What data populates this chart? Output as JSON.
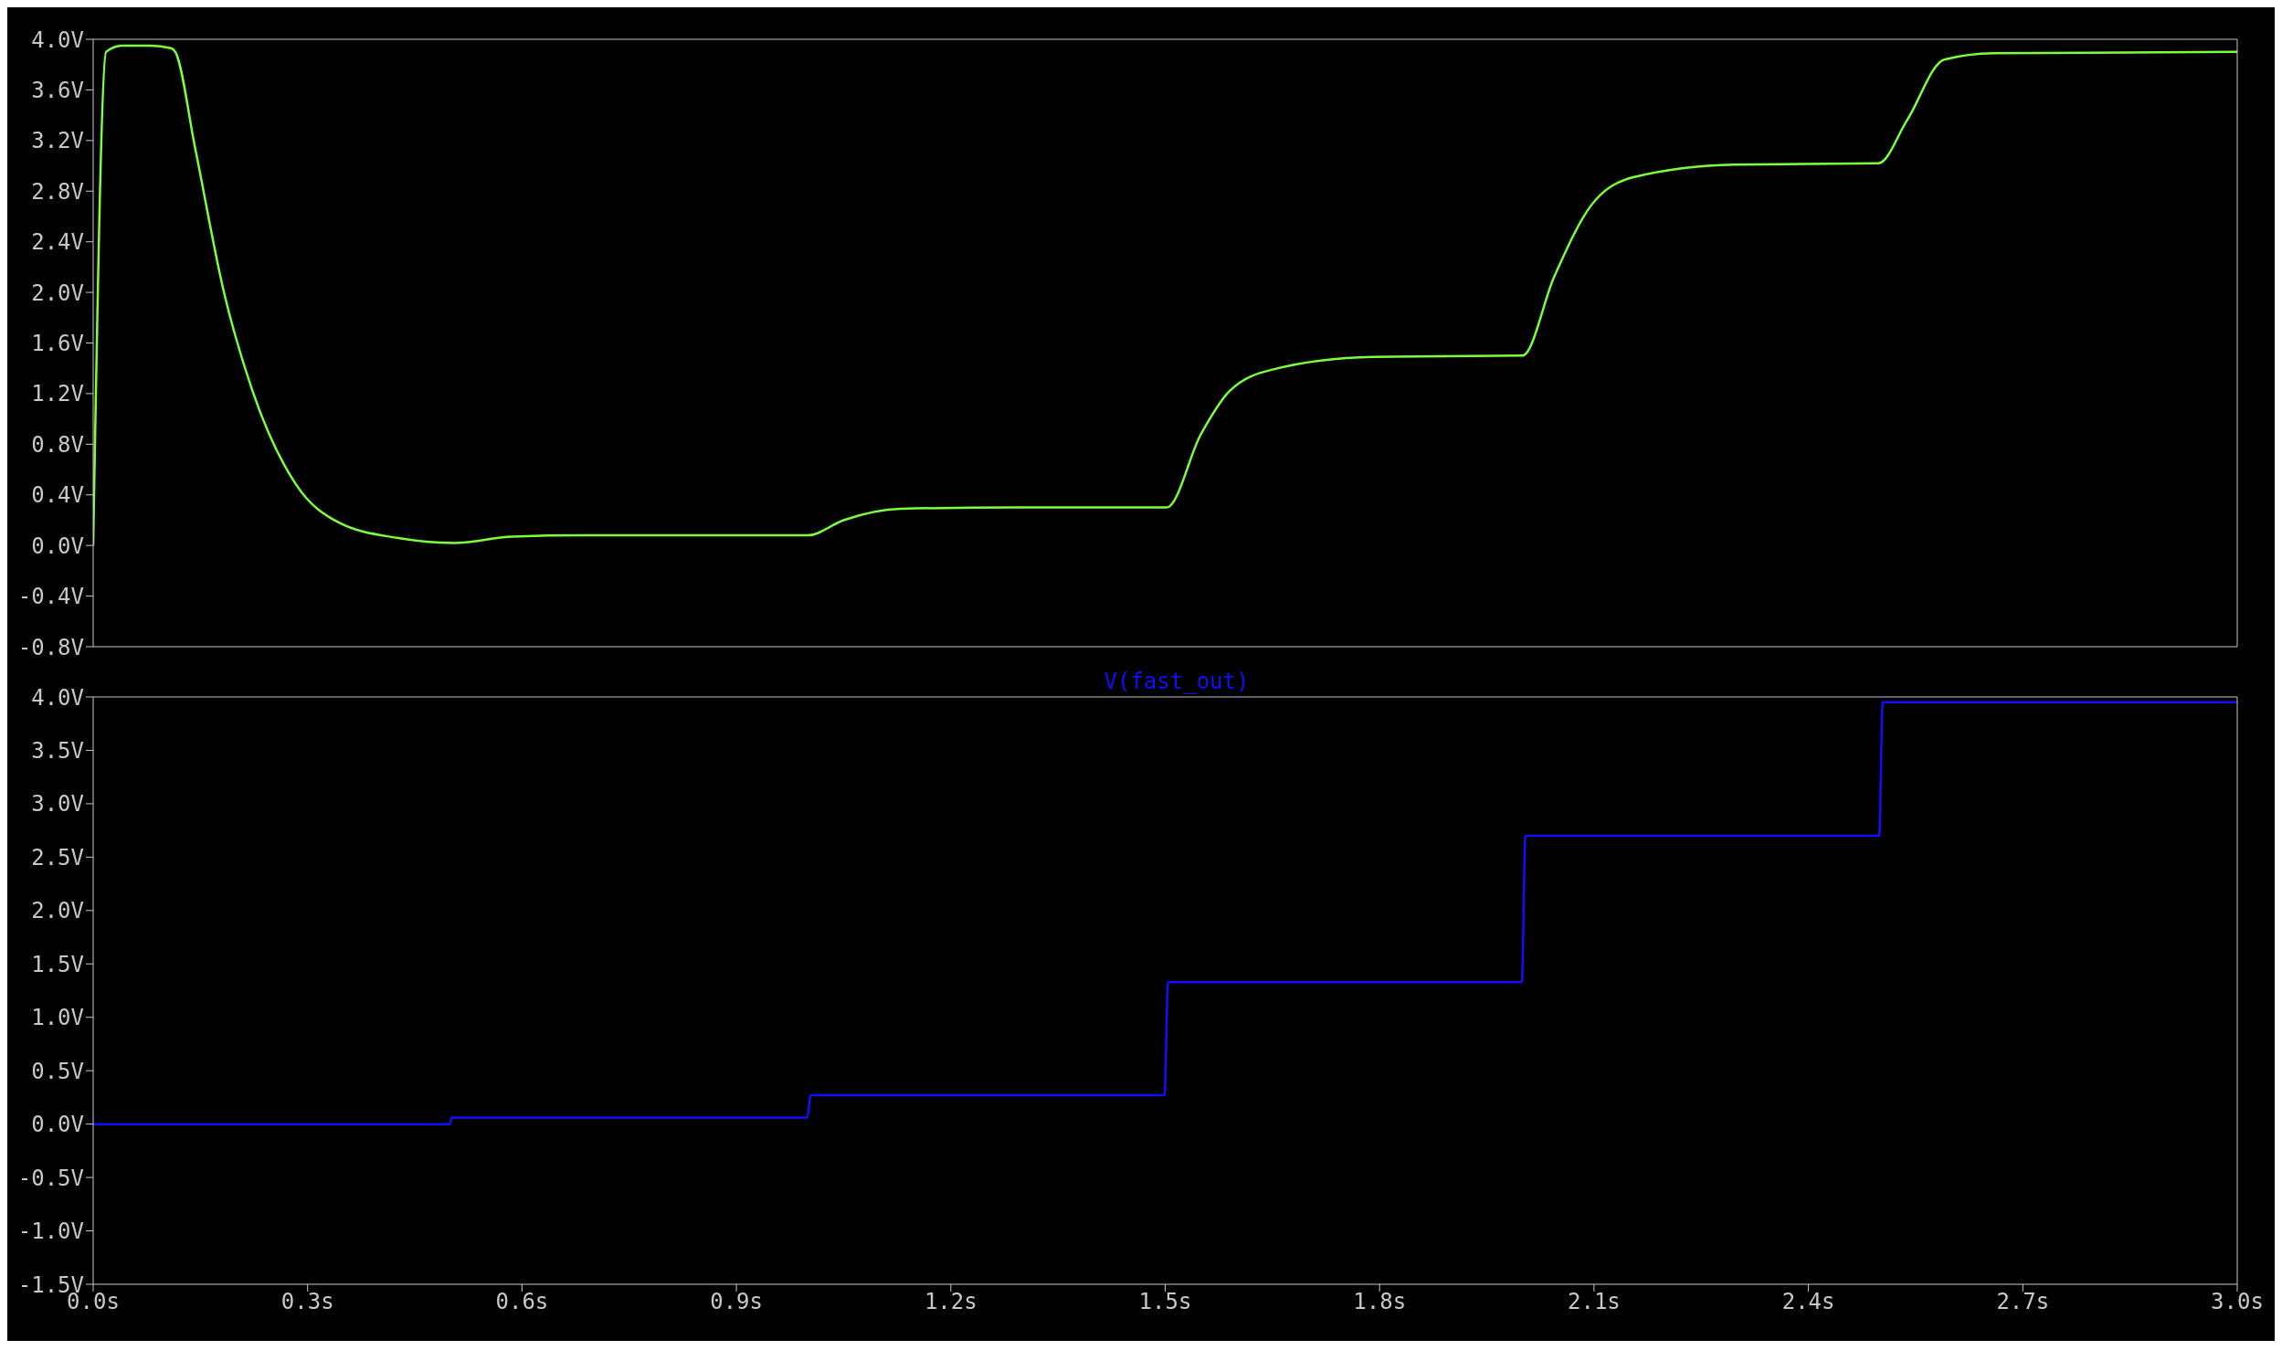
{
  "chart_data": [
    {
      "type": "line",
      "tick_labels": "y",
      "xlim": [
        0,
        3
      ],
      "ylim": [
        -0.8,
        4.0
      ],
      "yticks": [
        {
          "value": -0.8,
          "label": "-0.8V"
        },
        {
          "value": -0.4,
          "label": "-0.4V"
        },
        {
          "value": 0,
          "label": "0.0V"
        },
        {
          "value": 0.4,
          "label": "0.4V"
        },
        {
          "value": 0.8,
          "label": "0.8V"
        },
        {
          "value": 1.2,
          "label": "1.2V"
        },
        {
          "value": 1.6,
          "label": "1.6V"
        },
        {
          "value": 2.0,
          "label": "2.0V"
        },
        {
          "value": 2.4,
          "label": "2.4V"
        },
        {
          "value": 2.8,
          "label": "2.8V"
        },
        {
          "value": 3.2,
          "label": "3.2V"
        },
        {
          "value": 3.6,
          "label": "3.6V"
        },
        {
          "value": 4.0,
          "label": "4.0V"
        }
      ],
      "series": [
        {
          "color": "#7cff3c",
          "x": [
            0,
            0.018,
            0.04,
            0.08,
            0.109,
            0.115,
            0.143,
            0.183,
            0.223,
            0.284,
            0.344,
            0.425,
            0.505,
            0.586,
            0.687,
            1.0,
            1.05,
            1.13,
            1.29,
            1.502,
            1.55,
            1.59,
            1.65,
            1.79,
            2.0,
            2.044,
            2.095,
            2.155,
            2.296,
            2.498,
            2.538,
            2.59,
            2.66,
            3.0
          ],
          "values": [
            0,
            3.9,
            3.95,
            3.95,
            3.93,
            3.9,
            3.13,
            2.0,
            1.22,
            0.48,
            0.18,
            0.06,
            0.02,
            0.07,
            0.08,
            0.08,
            0.2,
            0.29,
            0.3,
            0.3,
            0.88,
            1.22,
            1.39,
            1.49,
            1.5,
            2.12,
            2.68,
            2.91,
            3.01,
            3.02,
            3.36,
            3.84,
            3.89,
            3.9
          ]
        }
      ]
    },
    {
      "type": "line",
      "title": "V(fast_out)",
      "xlim": [
        0,
        3
      ],
      "ylim": [
        -1.5,
        4.0
      ],
      "xticks": [
        {
          "value": 0,
          "label": "0.0s"
        },
        {
          "value": 0.3,
          "label": "0.3s"
        },
        {
          "value": 0.6,
          "label": "0.6s"
        },
        {
          "value": 0.9,
          "label": "0.9s"
        },
        {
          "value": 1.2,
          "label": "1.2s"
        },
        {
          "value": 1.5,
          "label": "1.5s"
        },
        {
          "value": 1.8,
          "label": "1.8s"
        },
        {
          "value": 2.1,
          "label": "2.1s"
        },
        {
          "value": 2.4,
          "label": "2.4s"
        },
        {
          "value": 2.7,
          "label": "2.7s"
        },
        {
          "value": 3.0,
          "label": "3.0s"
        }
      ],
      "yticks": [
        {
          "value": -1.5,
          "label": "-1.5V"
        },
        {
          "value": -1.0,
          "label": "-1.0V"
        },
        {
          "value": -0.5,
          "label": "-0.5V"
        },
        {
          "value": 0,
          "label": "0.0V"
        },
        {
          "value": 0.5,
          "label": "0.5V"
        },
        {
          "value": 1.0,
          "label": "1.0V"
        },
        {
          "value": 1.5,
          "label": "1.5V"
        },
        {
          "value": 2.0,
          "label": "2.0V"
        },
        {
          "value": 2.5,
          "label": "2.5V"
        },
        {
          "value": 3.0,
          "label": "3.0V"
        },
        {
          "value": 3.5,
          "label": "3.5V"
        },
        {
          "value": 4.0,
          "label": "4.0V"
        }
      ],
      "series": [
        {
          "color": "#1010ff",
          "x": [
            0,
            0.499,
            0.502,
            0.999,
            1.004,
            1.499,
            1.504,
            1.999,
            2.004,
            2.499,
            2.504,
            3.0
          ],
          "values": [
            0,
            0,
            0.06,
            0.06,
            0.27,
            0.27,
            1.33,
            1.33,
            2.7,
            2.7,
            3.95,
            3.95
          ]
        }
      ]
    }
  ]
}
